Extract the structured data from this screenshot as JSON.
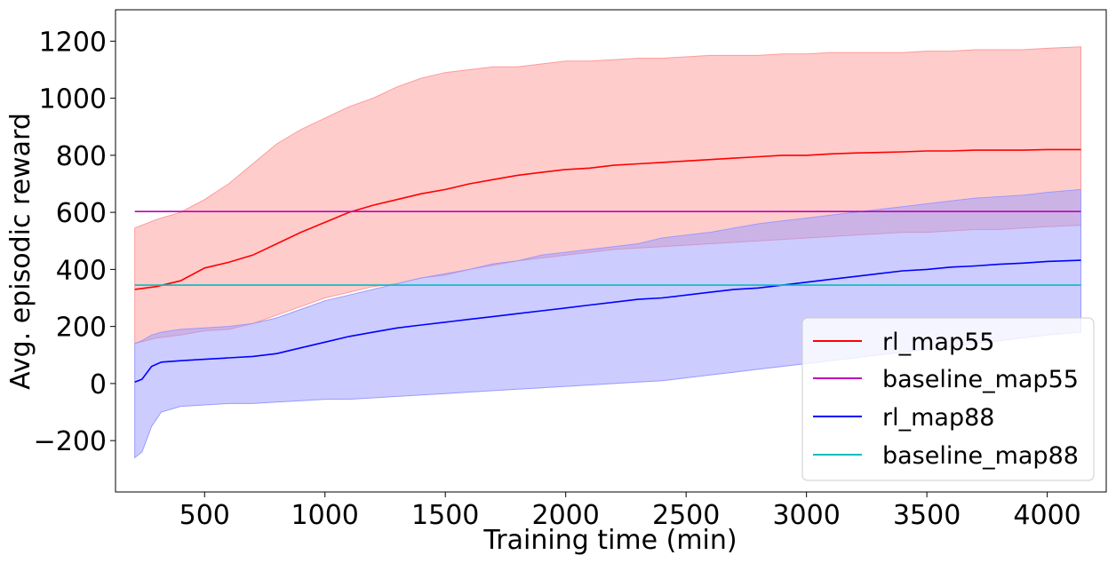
{
  "chart_data": {
    "type": "line",
    "title": "",
    "xlabel": "Training time (min)",
    "ylabel": "Avg. episodic reward",
    "xlim": [
      130,
      4245
    ],
    "ylim": [
      -380,
      1310
    ],
    "xticks": [
      500,
      1000,
      1500,
      2000,
      2500,
      3000,
      3500,
      4000
    ],
    "yticks": [
      -200,
      0,
      200,
      400,
      600,
      800,
      1000,
      1200
    ],
    "xtick_labels": [
      "500",
      "1000",
      "1500",
      "2000",
      "2500",
      "3000",
      "3500",
      "4000"
    ],
    "ytick_labels": [
      "−200",
      "0",
      "200",
      "400",
      "600",
      "800",
      "1000",
      "1200"
    ],
    "grid": false,
    "legend_position": "lower-right",
    "series": [
      {
        "name": "rl_map55",
        "color": "#ff0000",
        "band_color": "#ff9a9a",
        "x": [
          210,
          300,
          400,
          500,
          600,
          700,
          800,
          900,
          1000,
          1100,
          1200,
          1300,
          1400,
          1500,
          1600,
          1700,
          1800,
          1900,
          2000,
          2100,
          2200,
          2300,
          2400,
          2500,
          2600,
          2700,
          2800,
          2900,
          3000,
          3100,
          3200,
          3300,
          3400,
          3500,
          3600,
          3700,
          3800,
          3900,
          4000,
          4140
        ],
        "mean": [
          330,
          340,
          360,
          405,
          425,
          450,
          490,
          530,
          565,
          600,
          625,
          645,
          665,
          680,
          700,
          715,
          730,
          740,
          750,
          755,
          765,
          770,
          775,
          780,
          785,
          790,
          795,
          800,
          800,
          805,
          808,
          810,
          812,
          815,
          815,
          818,
          818,
          818,
          820,
          820
        ],
        "upper": [
          545,
          575,
          600,
          645,
          700,
          770,
          840,
          890,
          930,
          970,
          1000,
          1040,
          1070,
          1090,
          1100,
          1110,
          1110,
          1120,
          1130,
          1130,
          1135,
          1140,
          1140,
          1145,
          1150,
          1150,
          1150,
          1155,
          1155,
          1160,
          1160,
          1160,
          1160,
          1165,
          1165,
          1170,
          1170,
          1170,
          1175,
          1180
        ],
        "lower": [
          140,
          160,
          170,
          185,
          190,
          210,
          240,
          270,
          300,
          320,
          340,
          350,
          370,
          380,
          400,
          415,
          430,
          440,
          450,
          460,
          470,
          475,
          480,
          485,
          490,
          495,
          500,
          505,
          510,
          515,
          520,
          525,
          530,
          530,
          535,
          540,
          540,
          545,
          550,
          555
        ]
      },
      {
        "name": "baseline_map55",
        "color": "#bf00bf",
        "x": [
          210,
          4140
        ],
        "mean": [
          603,
          603
        ]
      },
      {
        "name": "rl_map88",
        "color": "#0000ff",
        "band_color": "#9a9aff",
        "x": [
          210,
          240,
          280,
          320,
          400,
          500,
          600,
          700,
          800,
          900,
          1000,
          1100,
          1200,
          1300,
          1400,
          1500,
          1600,
          1700,
          1800,
          1900,
          2000,
          2100,
          2200,
          2300,
          2400,
          2500,
          2600,
          2700,
          2800,
          2900,
          3000,
          3100,
          3200,
          3300,
          3400,
          3500,
          3600,
          3700,
          3800,
          3900,
          4000,
          4140
        ],
        "mean": [
          5,
          15,
          60,
          75,
          80,
          85,
          90,
          95,
          105,
          125,
          145,
          165,
          180,
          195,
          205,
          215,
          225,
          235,
          245,
          255,
          265,
          275,
          285,
          295,
          300,
          310,
          320,
          330,
          335,
          345,
          355,
          365,
          375,
          385,
          395,
          400,
          408,
          412,
          418,
          422,
          428,
          432
        ],
        "upper": [
          140,
          150,
          170,
          180,
          190,
          195,
          200,
          210,
          230,
          260,
          290,
          310,
          330,
          350,
          370,
          385,
          400,
          420,
          430,
          450,
          460,
          470,
          480,
          490,
          510,
          520,
          530,
          545,
          560,
          570,
          580,
          590,
          600,
          610,
          620,
          630,
          640,
          650,
          655,
          660,
          670,
          680
        ],
        "lower": [
          -260,
          -240,
          -150,
          -100,
          -80,
          -75,
          -70,
          -70,
          -65,
          -60,
          -55,
          -55,
          -50,
          -45,
          -40,
          -35,
          -30,
          -25,
          -20,
          -15,
          -10,
          -5,
          0,
          5,
          10,
          20,
          30,
          40,
          50,
          60,
          70,
          80,
          90,
          100,
          110,
          120,
          130,
          140,
          150,
          160,
          170,
          180
        ]
      },
      {
        "name": "baseline_map88",
        "color": "#00bfbf",
        "x": [
          210,
          4140
        ],
        "mean": [
          345,
          345
        ]
      }
    ]
  }
}
